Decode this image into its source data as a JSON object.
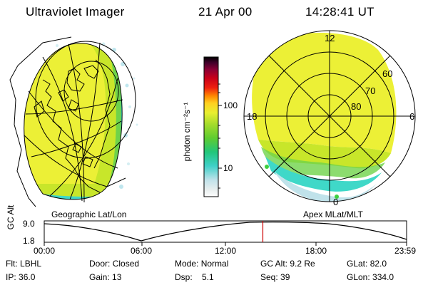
{
  "header": {
    "title": "Ultraviolet Imager",
    "date": "21 Apr 00",
    "time": "14:28:41 UT"
  },
  "colorbar": {
    "unit_label": "photon cm⁻²s⁻¹",
    "ticks": [
      "100",
      "10"
    ]
  },
  "left_map": {
    "label": "Geographic Lat/Lon"
  },
  "right_map": {
    "label": "Apex MLat/MLT",
    "mlt_labels": [
      "12",
      "18",
      "6",
      "0"
    ],
    "lat_labels": [
      "60",
      "70",
      "80"
    ]
  },
  "altitude_plot": {
    "ylabel": "GC Alt",
    "y_ticks": [
      "9.0",
      "1.8"
    ],
    "x_ticks": [
      "00:00",
      "06:00",
      "12:00",
      "18:00",
      "23:59"
    ],
    "current_time_fraction": 0.6033
  },
  "status": {
    "row1": [
      {
        "label": "Flt:",
        "value": "LBHL"
      },
      {
        "label": "Door:",
        "value": "Closed"
      },
      {
        "label": "Mode:",
        "value": "Normal"
      },
      {
        "label": "GC Alt:",
        "value": "9.2 Re"
      },
      {
        "label": "GLat:",
        "value": "82.0"
      }
    ],
    "row2": [
      {
        "label": "IP:",
        "value": "36.0"
      },
      {
        "label": "Gain:",
        "value": "13"
      },
      {
        "label": "Dsp:",
        "value": "5.1"
      },
      {
        "label": "Seq:",
        "value": "39"
      },
      {
        "label": "GLon:",
        "value": "334.0"
      }
    ]
  },
  "colors": {
    "yellow": "#ecf036",
    "yellow_green": "#c8e62a",
    "green": "#6fd34a",
    "cyan": "#3fd8c8",
    "marker": "#cc0000"
  }
}
